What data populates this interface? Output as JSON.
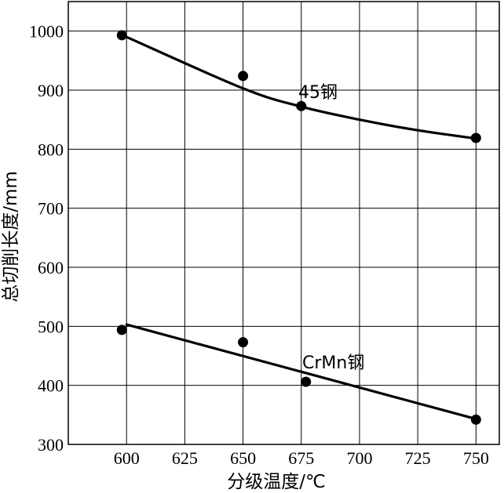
{
  "chart_data": {
    "type": "scatter",
    "xlabel": "分级温度/℃",
    "ylabel": "总切削长度/mm",
    "xlim": [
      575,
      760
    ],
    "ylim": [
      300,
      1050
    ],
    "grid": true,
    "x_ticks": [
      600,
      625,
      650,
      675,
      700,
      725,
      750
    ],
    "y_ticks": [
      300,
      400,
      500,
      600,
      700,
      800,
      900,
      1000
    ],
    "series": [
      {
        "name": "45钢",
        "points": [
          {
            "x": 598,
            "y": 993
          },
          {
            "x": 650,
            "y": 924
          },
          {
            "x": 675,
            "y": 873
          },
          {
            "x": 750,
            "y": 819
          }
        ],
        "trend": [
          {
            "x": 600,
            "y": 990
          },
          {
            "x": 650,
            "y": 903
          },
          {
            "x": 675,
            "y": 872
          },
          {
            "x": 700,
            "y": 850
          },
          {
            "x": 725,
            "y": 832
          },
          {
            "x": 750,
            "y": 818
          }
        ]
      },
      {
        "name": "CrMn钢",
        "points": [
          {
            "x": 598,
            "y": 494
          },
          {
            "x": 650,
            "y": 473
          },
          {
            "x": 677,
            "y": 406
          },
          {
            "x": 750,
            "y": 342
          }
        ],
        "trend": [
          {
            "x": 600,
            "y": 503
          },
          {
            "x": 750,
            "y": 343
          }
        ]
      }
    ]
  }
}
